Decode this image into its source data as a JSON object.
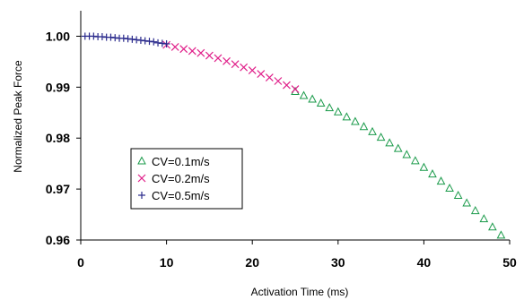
{
  "chart_data": {
    "type": "scatter",
    "xlabel": "Activation Time (ms)",
    "ylabel": "Normalized Peak Force",
    "xlim": [
      0,
      50
    ],
    "ylim": [
      0.96,
      1.005
    ],
    "xticks": [
      0,
      10,
      20,
      30,
      40,
      50
    ],
    "yticks": [
      0.96,
      0.97,
      0.98,
      0.99,
      1.0
    ],
    "xtick_labels": [
      "0",
      "10",
      "20",
      "30",
      "40",
      "50"
    ],
    "ytick_labels": [
      "0.96",
      "0.97",
      "0.98",
      "0.99",
      "1.00"
    ],
    "grid": false,
    "legend_position": "lower-left",
    "series": [
      {
        "name": "CV=0.1m/s",
        "marker": "triangle",
        "color": "#1a9a4a",
        "x": [
          25,
          26,
          27,
          28,
          29,
          30,
          31,
          32,
          33,
          34,
          35,
          36,
          37,
          38,
          39,
          40,
          41,
          42,
          43,
          44,
          45,
          46,
          47,
          48,
          49
        ],
        "y": [
          0.9891,
          0.9883,
          0.9876,
          0.9868,
          0.9859,
          0.9851,
          0.9841,
          0.9832,
          0.9822,
          0.9812,
          0.9801,
          0.979,
          0.9779,
          0.9767,
          0.9755,
          0.9742,
          0.9729,
          0.9715,
          0.9701,
          0.9687,
          0.9672,
          0.9657,
          0.9641,
          0.9625,
          0.9609
        ]
      },
      {
        "name": "CV=0.2m/s",
        "marker": "x",
        "color": "#e0208a",
        "x": [
          10,
          11,
          12,
          13,
          14,
          15,
          16,
          17,
          18,
          19,
          20,
          21,
          22,
          23,
          24,
          25
        ],
        "y": [
          0.9983,
          0.9979,
          0.9975,
          0.9971,
          0.9967,
          0.9962,
          0.9957,
          0.9951,
          0.9945,
          0.9939,
          0.9933,
          0.9926,
          0.9919,
          0.9912,
          0.9904,
          0.9896
        ]
      },
      {
        "name": "CV=0.5m/s",
        "marker": "plus",
        "color": "#2a2a8c",
        "x": [
          0.5,
          1,
          1.5,
          2,
          2.5,
          3,
          3.5,
          4,
          4.5,
          5,
          5.5,
          6,
          6.5,
          7,
          7.5,
          8,
          8.5,
          9,
          9.5,
          10
        ],
        "y": [
          1.0,
          1.0,
          1.0,
          0.9999,
          0.9999,
          0.9998,
          0.9998,
          0.9997,
          0.9996,
          0.9996,
          0.9995,
          0.9994,
          0.9993,
          0.9992,
          0.9991,
          0.999,
          0.9989,
          0.9987,
          0.9986,
          0.9985
        ]
      }
    ]
  }
}
